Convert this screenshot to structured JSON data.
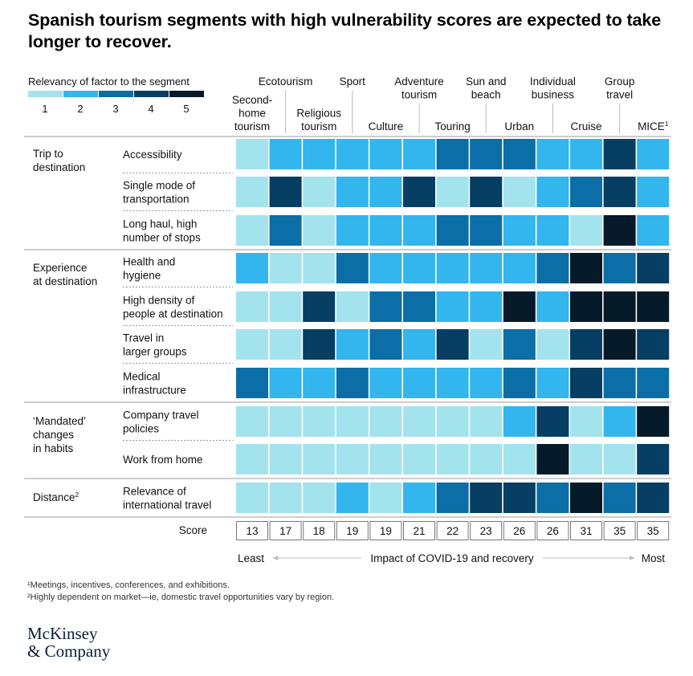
{
  "title": "Spanish tourism segments with high vulnerability scores are expected to take longer to recover.",
  "legend": {
    "title": "Relevancy of factor to the segment",
    "levels": [
      "1",
      "2",
      "3",
      "4",
      "5"
    ],
    "colors": [
      "#a3e3ee",
      "#33b5ee",
      "#0b6ea6",
      "#073e63",
      "#061a29"
    ]
  },
  "chart_data": {
    "type": "heatmap",
    "segments": [
      [
        "Second-",
        "home",
        "tourism"
      ],
      [
        "Ecotourism"
      ],
      [
        "Religious",
        "tourism"
      ],
      [
        "Sport"
      ],
      [
        "Culture"
      ],
      [
        "Adventure",
        "tourism"
      ],
      [
        "Touring"
      ],
      [
        "Sun and",
        "beach"
      ],
      [
        "Urban"
      ],
      [
        "Individual",
        "business"
      ],
      [
        "Cruise"
      ],
      [
        "Group",
        "travel"
      ],
      [
        "MICE¹"
      ]
    ],
    "groups": [
      {
        "label": [
          "Trip to",
          "destination"
        ],
        "rows": [
          {
            "factor": [
              "Accessibility"
            ],
            "values": [
              1,
              2,
              2,
              2,
              2,
              2,
              3,
              3,
              3,
              2,
              2,
              4,
              2
            ]
          },
          {
            "factor": [
              "Single mode of",
              "transportation"
            ],
            "values": [
              1,
              4,
              1,
              2,
              2,
              4,
              1,
              4,
              1,
              2,
              3,
              4,
              2
            ]
          },
          {
            "factor": [
              "Long haul, high",
              "number of stops"
            ],
            "values": [
              1,
              3,
              1,
              2,
              2,
              2,
              3,
              3,
              2,
              2,
              1,
              5,
              2
            ]
          }
        ]
      },
      {
        "label": [
          "Experience",
          "at destination"
        ],
        "rows": [
          {
            "factor": [
              "Health and",
              "hygiene"
            ],
            "values": [
              2,
              1,
              1,
              3,
              2,
              2,
              2,
              2,
              2,
              3,
              5,
              3,
              4
            ]
          },
          {
            "factor": [
              "High density of",
              "people at destination"
            ],
            "values": [
              1,
              1,
              4,
              1,
              3,
              3,
              2,
              2,
              5,
              2,
              5,
              5,
              5
            ]
          },
          {
            "factor": [
              "Travel in",
              "larger groups"
            ],
            "values": [
              1,
              1,
              4,
              2,
              3,
              2,
              4,
              1,
              3,
              1,
              4,
              5,
              4
            ]
          },
          {
            "factor": [
              "Medical",
              "infrastructure"
            ],
            "values": [
              3,
              2,
              2,
              3,
              2,
              2,
              2,
              2,
              3,
              2,
              4,
              3,
              3
            ]
          }
        ]
      },
      {
        "label": [
          "‘Mandated’",
          "changes",
          "in habits"
        ],
        "rows": [
          {
            "factor": [
              "Company travel",
              "policies"
            ],
            "values": [
              1,
              1,
              1,
              1,
              1,
              1,
              1,
              1,
              2,
              4,
              1,
              2,
              5
            ]
          },
          {
            "factor": [
              "Work from home"
            ],
            "values": [
              1,
              1,
              1,
              1,
              1,
              1,
              1,
              1,
              1,
              5,
              1,
              1,
              4
            ]
          }
        ]
      },
      {
        "label": [
          "Distance²"
        ],
        "rows": [
          {
            "factor": [
              "Relevance of",
              "international travel"
            ],
            "values": [
              1,
              1,
              1,
              2,
              1,
              2,
              3,
              4,
              4,
              3,
              5,
              3,
              4
            ]
          }
        ]
      }
    ],
    "score_label": "Score",
    "scores": [
      13,
      17,
      18,
      19,
      19,
      21,
      22,
      23,
      26,
      26,
      31,
      35,
      35
    ],
    "axis": {
      "least": "Least",
      "label": "Impact of COVID-19 and recovery",
      "most": "Most"
    }
  },
  "footnotes": {
    "fn1": "¹Meetings, incentives, conferences, and exhibitions.",
    "fn2": "²Highly dependent on market—ie, domestic travel opportunities vary by region."
  },
  "logo": {
    "line1": "McKinsey",
    "line2": "& Company"
  }
}
